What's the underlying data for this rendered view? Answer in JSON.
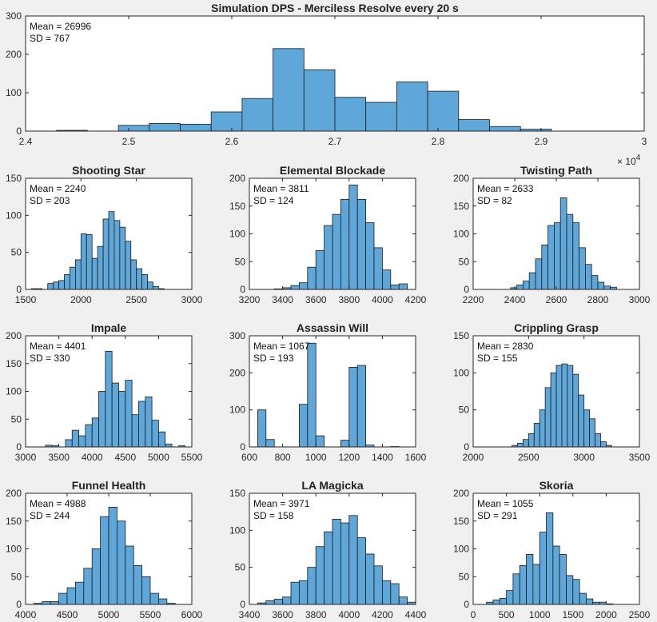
{
  "figure": {
    "background": "#f0f0f0",
    "bar_color": "#5fa7d9"
  },
  "chart_data": [
    {
      "type": "bar",
      "title": "Simulation DPS - Merciless Resolve every 20 s",
      "mean_label": "Mean = 26996",
      "sd_label": "SD = 767",
      "xlim": [
        24000,
        30000
      ],
      "ylim": [
        0,
        300
      ],
      "xticks": [
        24000,
        25000,
        26000,
        27000,
        28000,
        29000,
        30000
      ],
      "xtick_labels": [
        "2.4",
        "2.5",
        "2.6",
        "2.7",
        "2.8",
        "2.9",
        "3"
      ],
      "xtick_exponent": "× 10",
      "xtick_exponent_power": "4",
      "yticks": [
        0,
        100,
        200,
        300
      ],
      "bins": [
        [
          24300,
          24600,
          2
        ],
        [
          24900,
          25200,
          15
        ],
        [
          25200,
          25500,
          20
        ],
        [
          25500,
          25800,
          18
        ],
        [
          25800,
          26100,
          50
        ],
        [
          26100,
          26400,
          85
        ],
        [
          26400,
          26700,
          215
        ],
        [
          26700,
          27000,
          160
        ],
        [
          27000,
          27300,
          88
        ],
        [
          27300,
          27600,
          75
        ],
        [
          27600,
          27900,
          128
        ],
        [
          27900,
          28200,
          104
        ],
        [
          28200,
          28500,
          30
        ],
        [
          28500,
          28800,
          12
        ],
        [
          28800,
          29100,
          5
        ]
      ]
    },
    {
      "type": "bar",
      "title": "Shooting Star",
      "mean_label": "Mean = 2240",
      "sd_label": "SD = 203",
      "xlim": [
        1500,
        3000
      ],
      "ylim": [
        0,
        150
      ],
      "xticks": [
        1500,
        2000,
        2500,
        3000
      ],
      "yticks": [
        0,
        50,
        100,
        150
      ],
      "bins": [
        [
          1550,
          1600,
          1
        ],
        [
          1600,
          1650,
          1
        ],
        [
          1700,
          1750,
          8
        ],
        [
          1750,
          1800,
          10
        ],
        [
          1800,
          1850,
          12
        ],
        [
          1850,
          1900,
          20
        ],
        [
          1900,
          1950,
          30
        ],
        [
          1950,
          2000,
          40
        ],
        [
          2000,
          2050,
          75
        ],
        [
          2050,
          2100,
          74
        ],
        [
          2100,
          2150,
          42
        ],
        [
          2150,
          2200,
          58
        ],
        [
          2200,
          2250,
          95
        ],
        [
          2250,
          2300,
          105
        ],
        [
          2300,
          2350,
          93
        ],
        [
          2350,
          2400,
          84
        ],
        [
          2400,
          2450,
          65
        ],
        [
          2450,
          2500,
          40
        ],
        [
          2500,
          2550,
          28
        ],
        [
          2550,
          2600,
          20
        ],
        [
          2600,
          2650,
          10
        ],
        [
          2650,
          2700,
          4
        ],
        [
          2700,
          2750,
          1
        ]
      ]
    },
    {
      "type": "bar",
      "title": "Elemental Blockade",
      "mean_label": "Mean = 3811",
      "sd_label": "SD = 124",
      "xlim": [
        3200,
        4200
      ],
      "ylim": [
        0,
        200
      ],
      "xticks": [
        3200,
        3400,
        3600,
        3800,
        4000,
        4200
      ],
      "yticks": [
        0,
        50,
        100,
        150,
        200
      ],
      "bins": [
        [
          3350,
          3400,
          1
        ],
        [
          3400,
          3450,
          3
        ],
        [
          3450,
          3500,
          7
        ],
        [
          3500,
          3550,
          12
        ],
        [
          3550,
          3600,
          40
        ],
        [
          3600,
          3650,
          70
        ],
        [
          3650,
          3700,
          115
        ],
        [
          3700,
          3750,
          135
        ],
        [
          3750,
          3800,
          162
        ],
        [
          3800,
          3850,
          188
        ],
        [
          3850,
          3900,
          162
        ],
        [
          3900,
          3950,
          120
        ],
        [
          3950,
          4000,
          75
        ],
        [
          4000,
          4050,
          35
        ],
        [
          4050,
          4100,
          8
        ],
        [
          4100,
          4150,
          10
        ]
      ]
    },
    {
      "type": "bar",
      "title": "Twisting Path",
      "mean_label": "Mean = 2633",
      "sd_label": "SD = 82",
      "xlim": [
        2200,
        3000
      ],
      "ylim": [
        0,
        200
      ],
      "xticks": [
        2200,
        2400,
        2600,
        2800,
        3000
      ],
      "yticks": [
        0,
        50,
        100,
        150,
        200
      ],
      "bins": [
        [
          2380,
          2410,
          3
        ],
        [
          2410,
          2440,
          8
        ],
        [
          2440,
          2470,
          15
        ],
        [
          2470,
          2500,
          30
        ],
        [
          2500,
          2530,
          55
        ],
        [
          2530,
          2560,
          80
        ],
        [
          2560,
          2590,
          115
        ],
        [
          2590,
          2620,
          120
        ],
        [
          2620,
          2650,
          165
        ],
        [
          2650,
          2680,
          135
        ],
        [
          2680,
          2710,
          120
        ],
        [
          2710,
          2740,
          75
        ],
        [
          2740,
          2770,
          45
        ],
        [
          2770,
          2800,
          25
        ],
        [
          2800,
          2830,
          13
        ],
        [
          2830,
          2860,
          6
        ],
        [
          2860,
          2890,
          4
        ]
      ]
    },
    {
      "type": "bar",
      "title": "Impale",
      "mean_label": "Mean = 4401",
      "sd_label": "SD = 330",
      "xlim": [
        3000,
        5500
      ],
      "ylim": [
        0,
        200
      ],
      "xticks": [
        3000,
        3500,
        4000,
        4500,
        5000,
        5500
      ],
      "yticks": [
        0,
        50,
        100,
        150,
        200
      ],
      "bins": [
        [
          3300,
          3400,
          3
        ],
        [
          3400,
          3500,
          2
        ],
        [
          3600,
          3700,
          13
        ],
        [
          3700,
          3800,
          30
        ],
        [
          3800,
          3900,
          20
        ],
        [
          3900,
          4000,
          40
        ],
        [
          4000,
          4100,
          52
        ],
        [
          4100,
          4200,
          100
        ],
        [
          4200,
          4300,
          172
        ],
        [
          4300,
          4400,
          115
        ],
        [
          4400,
          4500,
          100
        ],
        [
          4500,
          4600,
          120
        ],
        [
          4600,
          4700,
          58
        ],
        [
          4700,
          4800,
          82
        ],
        [
          4800,
          4900,
          90
        ],
        [
          4900,
          5000,
          48
        ],
        [
          5000,
          5100,
          27
        ],
        [
          5100,
          5200,
          5
        ],
        [
          5300,
          5400,
          2
        ]
      ]
    },
    {
      "type": "bar",
      "title": "Assassin Will",
      "mean_label": "Mean = 1067",
      "sd_label": "SD = 193",
      "xlim": [
        600,
        1600
      ],
      "ylim": [
        0,
        300
      ],
      "xticks": [
        600,
        800,
        1000,
        1200,
        1400,
        1600
      ],
      "yticks": [
        0,
        100,
        200,
        300
      ],
      "bins": [
        [
          650,
          700,
          100
        ],
        [
          700,
          750,
          20
        ],
        [
          900,
          950,
          115
        ],
        [
          950,
          1000,
          280
        ],
        [
          1000,
          1050,
          30
        ],
        [
          1150,
          1200,
          18
        ],
        [
          1200,
          1250,
          215
        ],
        [
          1250,
          1300,
          220
        ],
        [
          1300,
          1350,
          5
        ],
        [
          1450,
          1500,
          1
        ]
      ]
    },
    {
      "type": "bar",
      "title": "Crippling Grasp",
      "mean_label": "Mean = 2830",
      "sd_label": "SD = 155",
      "xlim": [
        2000,
        3500
      ],
      "ylim": [
        0,
        150
      ],
      "xticks": [
        2000,
        2500,
        3000,
        3500
      ],
      "yticks": [
        0,
        50,
        100,
        150
      ],
      "bins": [
        [
          2350,
          2400,
          2
        ],
        [
          2400,
          2450,
          5
        ],
        [
          2450,
          2500,
          10
        ],
        [
          2500,
          2550,
          18
        ],
        [
          2550,
          2600,
          32
        ],
        [
          2600,
          2650,
          50
        ],
        [
          2650,
          2700,
          80
        ],
        [
          2700,
          2750,
          100
        ],
        [
          2750,
          2800,
          110
        ],
        [
          2800,
          2850,
          112
        ],
        [
          2850,
          2900,
          110
        ],
        [
          2900,
          2950,
          98
        ],
        [
          2950,
          3000,
          70
        ],
        [
          3000,
          3050,
          50
        ],
        [
          3050,
          3100,
          38
        ],
        [
          3100,
          3150,
          18
        ],
        [
          3150,
          3200,
          7
        ],
        [
          3200,
          3250,
          2
        ]
      ]
    },
    {
      "type": "bar",
      "title": "Funnel Health",
      "mean_label": "Mean = 4988",
      "sd_label": "SD = 244",
      "xlim": [
        4000,
        6000
      ],
      "ylim": [
        0,
        200
      ],
      "xticks": [
        4000,
        4500,
        5000,
        5500,
        6000
      ],
      "yticks": [
        0,
        50,
        100,
        150,
        200
      ],
      "bins": [
        [
          4100,
          4200,
          2
        ],
        [
          4200,
          4300,
          5
        ],
        [
          4300,
          4400,
          5
        ],
        [
          4400,
          4500,
          20
        ],
        [
          4500,
          4600,
          30
        ],
        [
          4600,
          4700,
          40
        ],
        [
          4700,
          4800,
          65
        ],
        [
          4800,
          4900,
          100
        ],
        [
          4900,
          5000,
          158
        ],
        [
          5000,
          5100,
          175
        ],
        [
          5100,
          5200,
          150
        ],
        [
          5200,
          5300,
          105
        ],
        [
          5300,
          5400,
          70
        ],
        [
          5400,
          5500,
          50
        ],
        [
          5500,
          5600,
          20
        ],
        [
          5600,
          5700,
          10
        ],
        [
          5700,
          5800,
          2
        ]
      ]
    },
    {
      "type": "bar",
      "title": "LA Magicka",
      "mean_label": "Mean = 3971",
      "sd_label": "SD = 158",
      "xlim": [
        3400,
        4400
      ],
      "ylim": [
        0,
        150
      ],
      "xticks": [
        3400,
        3600,
        3800,
        4000,
        4200,
        4400
      ],
      "yticks": [
        0,
        50,
        100,
        150
      ],
      "bins": [
        [
          3450,
          3500,
          2
        ],
        [
          3500,
          3550,
          5
        ],
        [
          3550,
          3600,
          7
        ],
        [
          3600,
          3650,
          10
        ],
        [
          3650,
          3700,
          30
        ],
        [
          3700,
          3750,
          32
        ],
        [
          3750,
          3800,
          50
        ],
        [
          3800,
          3850,
          78
        ],
        [
          3850,
          3900,
          98
        ],
        [
          3900,
          3950,
          115
        ],
        [
          3950,
          4000,
          110
        ],
        [
          4000,
          4050,
          120
        ],
        [
          4050,
          4100,
          90
        ],
        [
          4100,
          4150,
          68
        ],
        [
          4150,
          4200,
          52
        ],
        [
          4200,
          4250,
          32
        ],
        [
          4250,
          4300,
          28
        ],
        [
          4300,
          4350,
          10
        ],
        [
          4350,
          4400,
          3
        ]
      ]
    },
    {
      "type": "bar",
      "title": "Skoria",
      "mean_label": "Mean = 1055",
      "sd_label": "SD = 291",
      "xlim": [
        0,
        2500
      ],
      "ylim": [
        0,
        200
      ],
      "xticks": [
        0,
        500,
        1000,
        1500,
        2000,
        2500
      ],
      "yticks": [
        0,
        50,
        100,
        150,
        200
      ],
      "bins": [
        [
          200,
          300,
          4
        ],
        [
          300,
          400,
          8
        ],
        [
          400,
          500,
          11
        ],
        [
          500,
          600,
          25
        ],
        [
          600,
          700,
          55
        ],
        [
          700,
          800,
          70
        ],
        [
          800,
          900,
          90
        ],
        [
          900,
          1000,
          72
        ],
        [
          1000,
          1100,
          130
        ],
        [
          1100,
          1200,
          165
        ],
        [
          1200,
          1300,
          105
        ],
        [
          1300,
          1400,
          90
        ],
        [
          1400,
          1500,
          52
        ],
        [
          1500,
          1600,
          45
        ],
        [
          1600,
          1700,
          20
        ],
        [
          1700,
          1800,
          10
        ],
        [
          1800,
          1900,
          4
        ],
        [
          1900,
          2000,
          4
        ],
        [
          2000,
          2100,
          1
        ]
      ]
    }
  ]
}
